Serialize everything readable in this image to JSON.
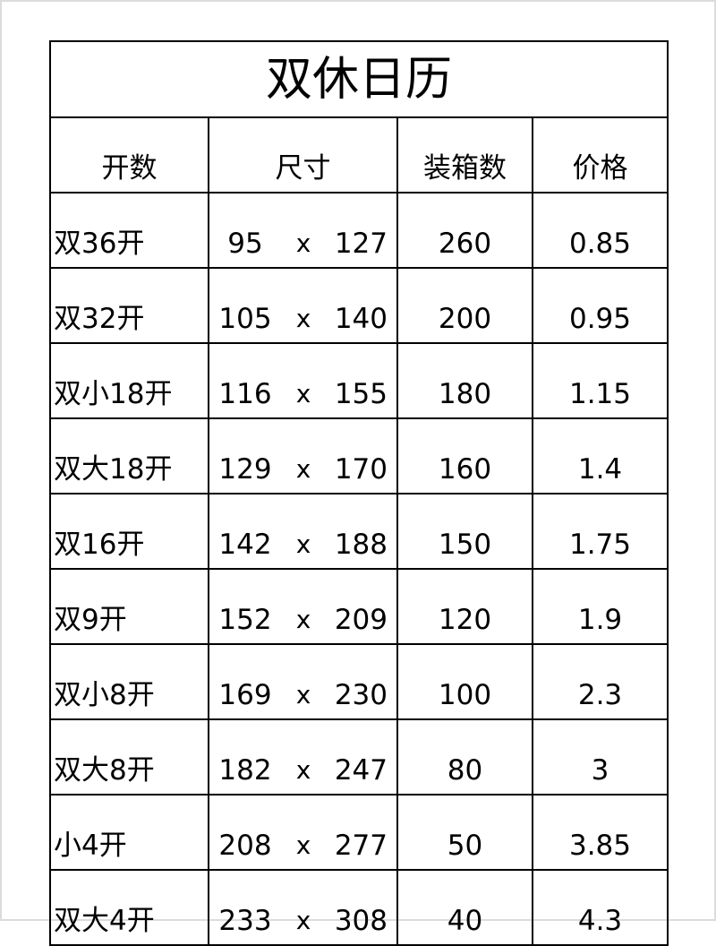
{
  "title": "双休日历",
  "headers": [
    "开数",
    "尺寸",
    "装箱数",
    "价格"
  ],
  "size_separator": "x",
  "rows": [
    {
      "name": "双36开",
      "w": "95",
      "h": "127",
      "box": "260",
      "price": "0.85"
    },
    {
      "name": "双32开",
      "w": "105",
      "h": "140",
      "box": "200",
      "price": "0.95"
    },
    {
      "name": "双小18开",
      "w": "116",
      "h": "155",
      "box": "180",
      "price": "1.15"
    },
    {
      "name": "双大18开",
      "w": "129",
      "h": "170",
      "box": "160",
      "price": "1.4"
    },
    {
      "name": "双16开",
      "w": "142",
      "h": "188",
      "box": "150",
      "price": "1.75"
    },
    {
      "name": "双9开",
      "w": "152",
      "h": "209",
      "box": "120",
      "price": "1.9"
    },
    {
      "name": "双小8开",
      "w": "169",
      "h": "230",
      "box": "100",
      "price": "2.3"
    },
    {
      "name": "双大8开",
      "w": "182",
      "h": "247",
      "box": "80",
      "price": "3"
    },
    {
      "name": "小4开",
      "w": "208",
      "h": "277",
      "box": "50",
      "price": "3.85"
    },
    {
      "name": "双大4开",
      "w": "233",
      "h": "308",
      "box": "40",
      "price": "4.3"
    }
  ]
}
